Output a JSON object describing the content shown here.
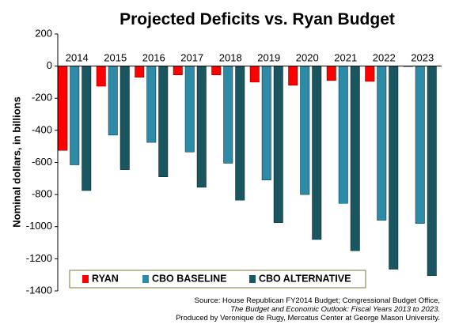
{
  "chart_data": {
    "type": "bar",
    "title": "Projected Deficits vs. Ryan Budget",
    "ylabel": "Nominal dollars, in billions",
    "xlabel": "",
    "categories": [
      "2014",
      "2015",
      "2016",
      "2017",
      "2018",
      "2019",
      "2020",
      "2021",
      "2022",
      "2023"
    ],
    "ylim": [
      -1400,
      200
    ],
    "yticks": [
      200,
      0,
      -200,
      -400,
      -600,
      -800,
      -1000,
      -1200,
      -1400
    ],
    "grid": false,
    "legend_position": "bottom",
    "series": [
      {
        "name": "RYAN",
        "color": "#ff0000",
        "values": [
          -525,
          -125,
          -70,
          -55,
          -55,
          -100,
          -120,
          -90,
          -95,
          0
        ]
      },
      {
        "name": "CBO BASELINE",
        "color": "#2e8ba8",
        "values": [
          -615,
          -430,
          -475,
          -535,
          -605,
          -710,
          -800,
          -855,
          -960,
          -980
        ]
      },
      {
        "name": "CBO ALTERNATIVE",
        "color": "#1a5660",
        "values": [
          -775,
          -645,
          -690,
          -755,
          -835,
          -975,
          -1080,
          -1150,
          -1265,
          -1305
        ]
      }
    ]
  },
  "source": {
    "line1": "Source: House Republican FY2014 Budget; Congressional Budget Office,",
    "line2": "The Budget and Economic Outlook: Fiscal Years 2013 to 2023.",
    "line3": "Produced by Veronique de Rugy, Mercatus Center at George Mason University."
  }
}
